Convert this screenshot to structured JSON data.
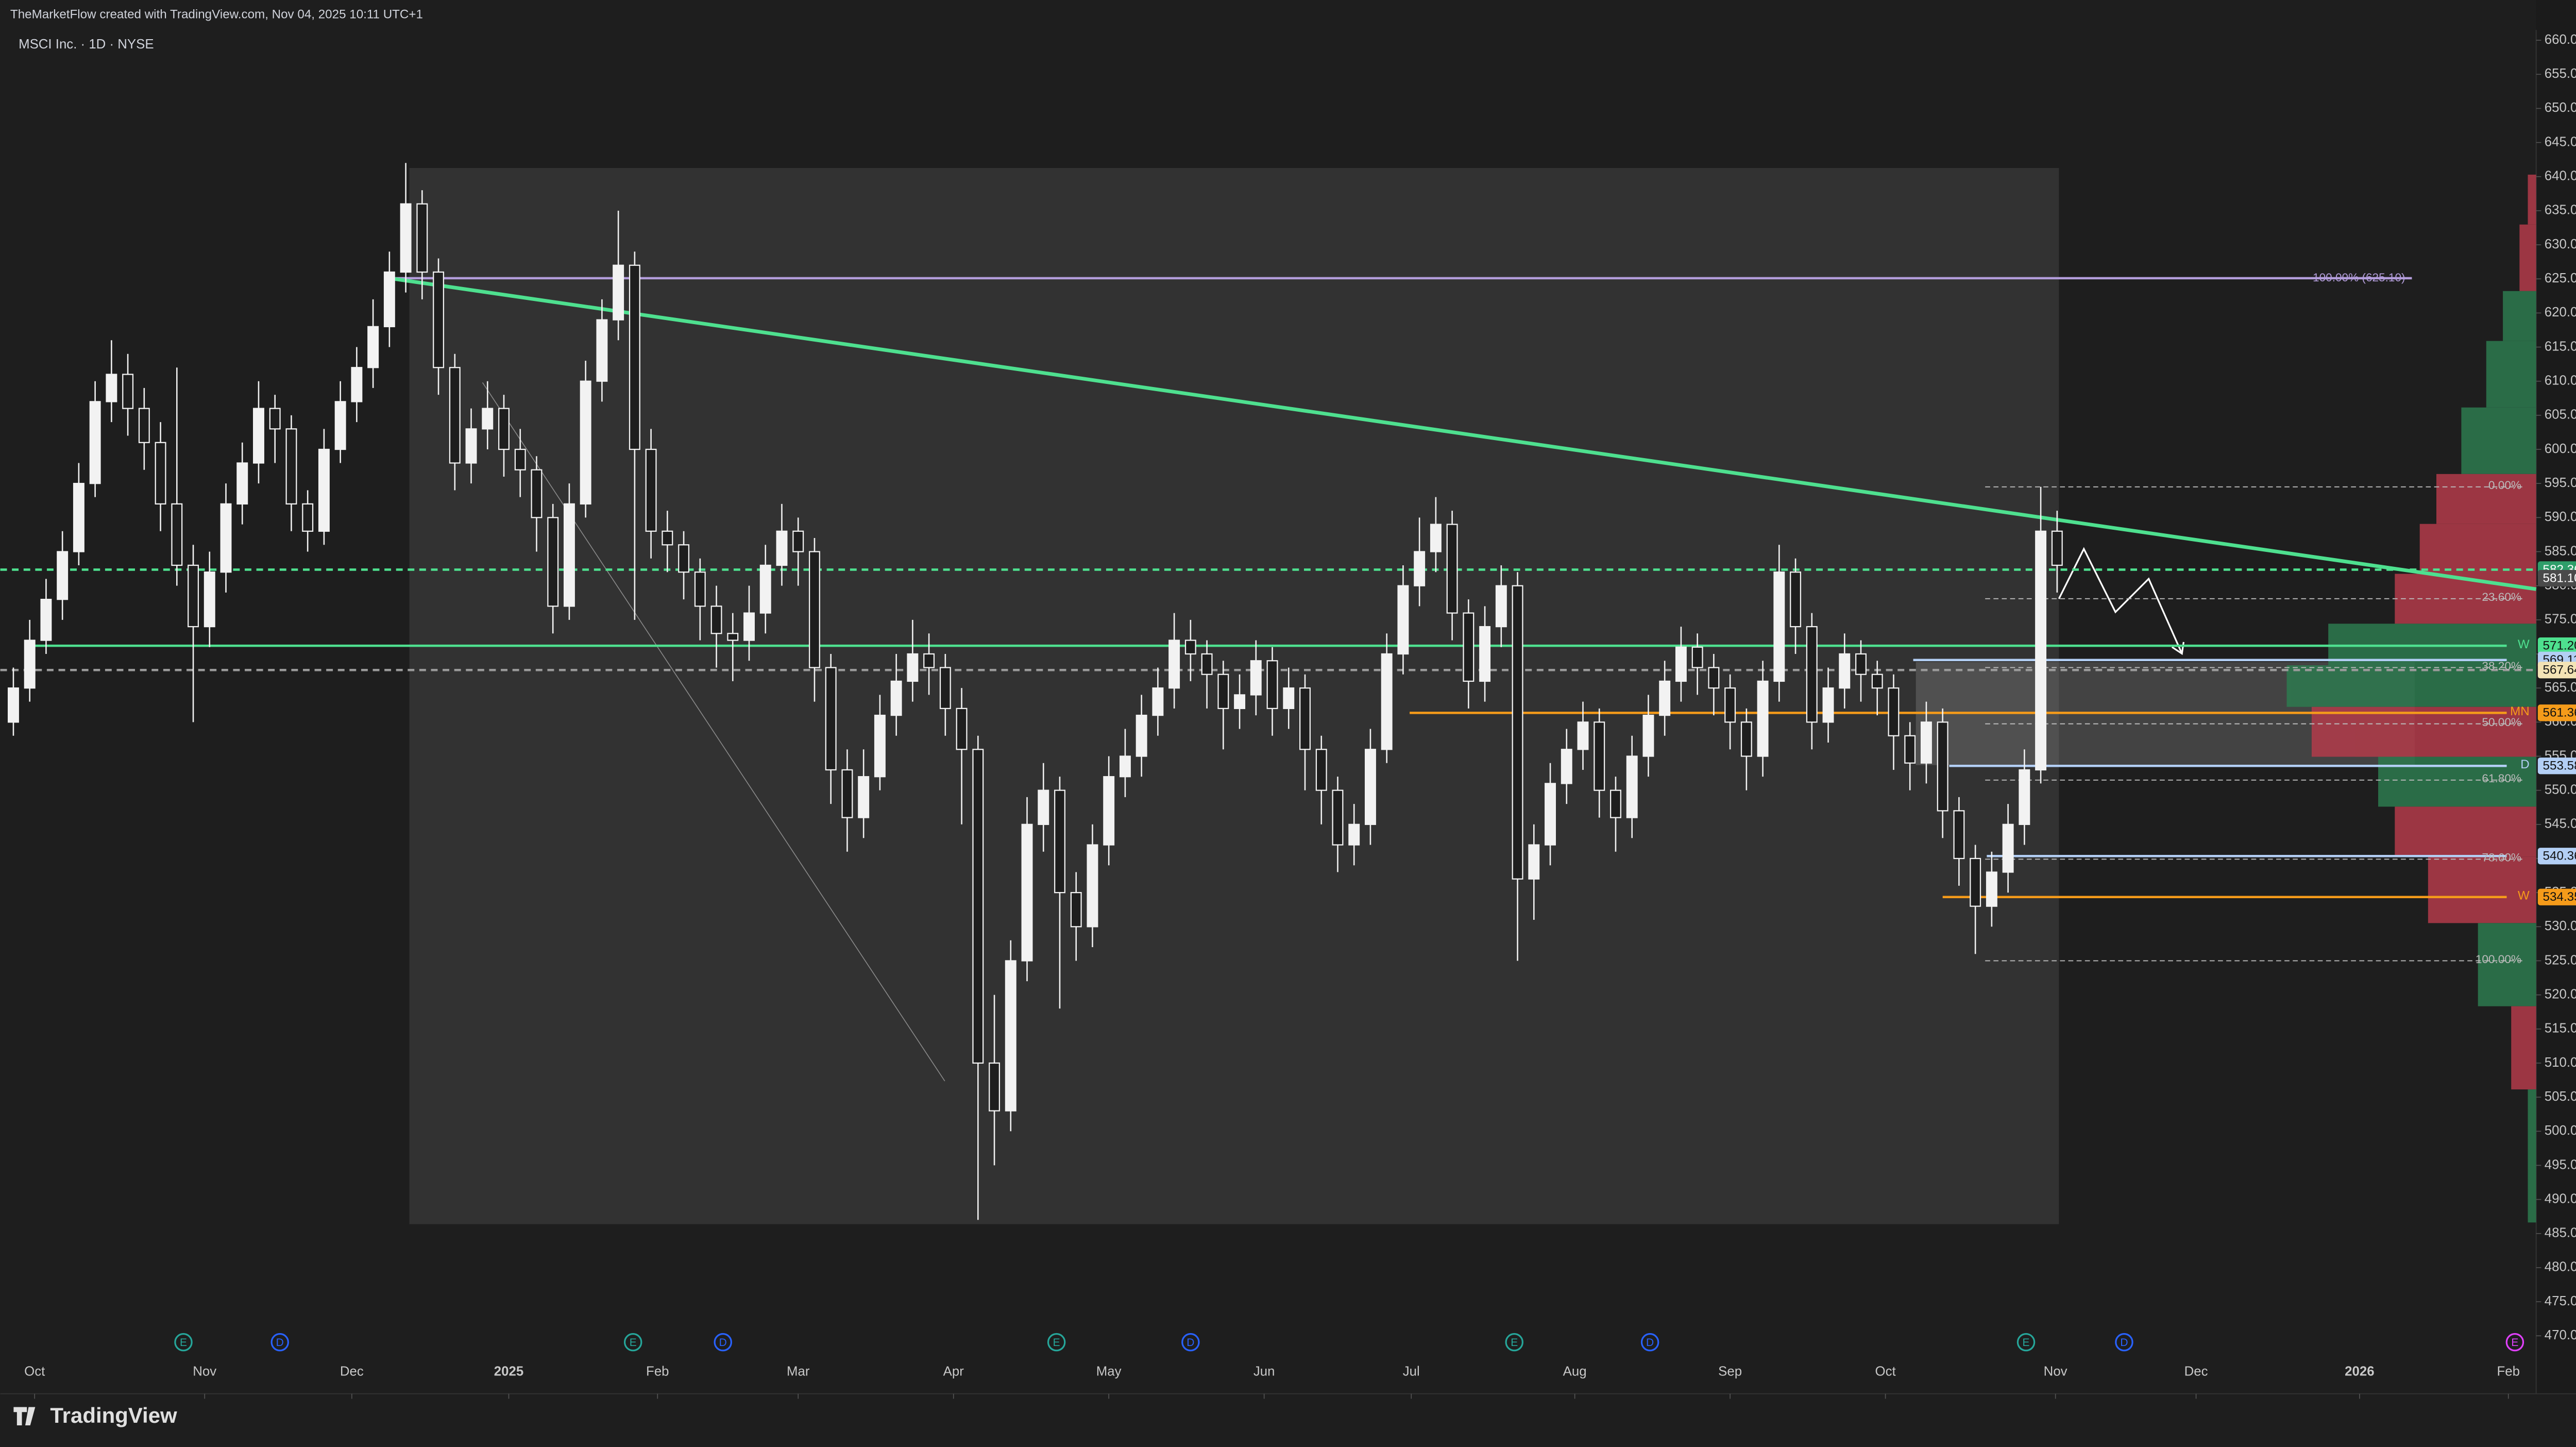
{
  "chart_data": {
    "type": "candlestick",
    "header": "TheMarketFlow created with TradingView.com, Nov 04, 2025 10:11 UTC+1",
    "title": "MSCI Inc. · 1D · NYSE",
    "brand": "TradingView",
    "color": "#f2f2f2",
    "xlim": [
      -0.8,
      154.3
    ],
    "ylim": [
      461.5,
      665.9
    ],
    "yticks": [
      {
        "value": 660,
        "label": "660.00"
      },
      {
        "value": 655,
        "label": "655.00"
      },
      {
        "value": 650,
        "label": "650.00"
      },
      {
        "value": 645,
        "label": "645.00"
      },
      {
        "value": 640,
        "label": "640.00"
      },
      {
        "value": 635,
        "label": "635.00"
      },
      {
        "value": 630,
        "label": "630.00"
      },
      {
        "value": 625,
        "label": "625.00"
      },
      {
        "value": 620,
        "label": "620.00"
      },
      {
        "value": 615,
        "label": "615.00"
      },
      {
        "value": 610,
        "label": "610.00"
      },
      {
        "value": 605,
        "label": "605.00"
      },
      {
        "value": 600,
        "label": "600.00"
      },
      {
        "value": 595,
        "label": "595.00"
      },
      {
        "value": 590,
        "label": "590.00"
      },
      {
        "value": 585,
        "label": "585.00"
      },
      {
        "value": 580,
        "label": "580.00"
      },
      {
        "value": 575,
        "label": "575.00"
      },
      {
        "value": 570,
        "label": "570.00"
      },
      {
        "value": 565,
        "label": "565.00"
      },
      {
        "value": 560,
        "label": "560.00"
      },
      {
        "value": 555,
        "label": "555.00"
      },
      {
        "value": 550,
        "label": "550.00"
      },
      {
        "value": 545,
        "label": "545.00"
      },
      {
        "value": 540,
        "label": "540.00"
      },
      {
        "value": 535,
        "label": "535.00"
      },
      {
        "value": 530,
        "label": "530.00"
      },
      {
        "value": 525,
        "label": "525.00"
      },
      {
        "value": 520,
        "label": "520.00"
      },
      {
        "value": 515,
        "label": "515.00"
      },
      {
        "value": 510,
        "label": "510.00"
      },
      {
        "value": 505,
        "label": "505.00"
      },
      {
        "value": 500,
        "label": "500.00"
      },
      {
        "value": 495,
        "label": "495.00"
      },
      {
        "value": 490,
        "label": "490.00"
      },
      {
        "value": 485,
        "label": "485.00"
      },
      {
        "value": 480,
        "label": "480.00"
      },
      {
        "value": 475,
        "label": "475.00"
      },
      {
        "value": 470,
        "label": "470.00"
      }
    ],
    "xticks": [
      {
        "value": 1.3,
        "label": "Oct"
      },
      {
        "value": 11.7,
        "label": "Nov"
      },
      {
        "value": 20.7,
        "label": "Dec"
      },
      {
        "value": 30.3,
        "label": "2025"
      },
      {
        "value": 39.4,
        "label": "Feb"
      },
      {
        "value": 48,
        "label": "Mar"
      },
      {
        "value": 57.5,
        "label": "Apr"
      },
      {
        "value": 67,
        "label": "May"
      },
      {
        "value": 76.5,
        "label": "Jun"
      },
      {
        "value": 85.5,
        "label": "Jul"
      },
      {
        "value": 95.5,
        "label": "Aug"
      },
      {
        "value": 105,
        "label": "Sep"
      },
      {
        "value": 114.5,
        "label": "Oct"
      },
      {
        "value": 124.9,
        "label": "Nov"
      },
      {
        "value": 133.5,
        "label": "Dec"
      },
      {
        "value": 143.5,
        "label": "2026"
      },
      {
        "value": 152.6,
        "label": "Feb"
      }
    ],
    "candles": [
      [
        560,
        568,
        558,
        565
      ],
      [
        565,
        575,
        563,
        572
      ],
      [
        572,
        581,
        570,
        578
      ],
      [
        578,
        588,
        575,
        585
      ],
      [
        585,
        598,
        583,
        595
      ],
      [
        595,
        610,
        593,
        607
      ],
      [
        607,
        616,
        604,
        611
      ],
      [
        611,
        614,
        602,
        606
      ],
      [
        606,
        609,
        597,
        601
      ],
      [
        601,
        604,
        588,
        592
      ],
      [
        592,
        612,
        580,
        583
      ],
      [
        583,
        586,
        560,
        574
      ],
      [
        574,
        585,
        571,
        582
      ],
      [
        582,
        595,
        579,
        592
      ],
      [
        592,
        601,
        589,
        598
      ],
      [
        598,
        610,
        595,
        606
      ],
      [
        606,
        608,
        598,
        603
      ],
      [
        603,
        605,
        588,
        592
      ],
      [
        592,
        594,
        585,
        588
      ],
      [
        588,
        603,
        586,
        600
      ],
      [
        600,
        610,
        598,
        607
      ],
      [
        607,
        615,
        604,
        612
      ],
      [
        612,
        622,
        609,
        618
      ],
      [
        618,
        629,
        615,
        626
      ],
      [
        626,
        642,
        623,
        636
      ],
      [
        636,
        638,
        622,
        626
      ],
      [
        626,
        628,
        608,
        612
      ],
      [
        612,
        614,
        594,
        598
      ],
      [
        598,
        606,
        595,
        603
      ],
      [
        603,
        610,
        600,
        606
      ],
      [
        606,
        608,
        596,
        600
      ],
      [
        600,
        603,
        593,
        597
      ],
      [
        597,
        599,
        585,
        590
      ],
      [
        590,
        592,
        573,
        577
      ],
      [
        577,
        595,
        575,
        592
      ],
      [
        592,
        613,
        590,
        610
      ],
      [
        610,
        622,
        607,
        619
      ],
      [
        619,
        635,
        616,
        627
      ],
      [
        627,
        629,
        575,
        600
      ],
      [
        600,
        603,
        584,
        588
      ],
      [
        588,
        591,
        582,
        586
      ],
      [
        586,
        588,
        578,
        582
      ],
      [
        582,
        584,
        572,
        577
      ],
      [
        577,
        580,
        568,
        573
      ],
      [
        573,
        576,
        566,
        572
      ],
      [
        572,
        580,
        569,
        576
      ],
      [
        576,
        586,
        573,
        583
      ],
      [
        583,
        592,
        580,
        588
      ],
      [
        588,
        590,
        580,
        585
      ],
      [
        585,
        587,
        563,
        568
      ],
      [
        568,
        570,
        548,
        553
      ],
      [
        553,
        556,
        541,
        546
      ],
      [
        546,
        556,
        543,
        552
      ],
      [
        552,
        564,
        550,
        561
      ],
      [
        561,
        570,
        558,
        566
      ],
      [
        566,
        575,
        563,
        570
      ],
      [
        570,
        573,
        564,
        568
      ],
      [
        568,
        570,
        558,
        562
      ],
      [
        562,
        565,
        545,
        556
      ],
      [
        556,
        558,
        487,
        510
      ],
      [
        510,
        520,
        495,
        503
      ],
      [
        503,
        528,
        500,
        525
      ],
      [
        525,
        549,
        522,
        545
      ],
      [
        545,
        554,
        541,
        550
      ],
      [
        550,
        552,
        518,
        535
      ],
      [
        535,
        538,
        525,
        530
      ],
      [
        530,
        545,
        527,
        542
      ],
      [
        542,
        555,
        539,
        552
      ],
      [
        552,
        559,
        549,
        555
      ],
      [
        555,
        564,
        552,
        561
      ],
      [
        561,
        568,
        558,
        565
      ],
      [
        565,
        576,
        562,
        572
      ],
      [
        572,
        575,
        566,
        570
      ],
      [
        570,
        572,
        562,
        567
      ],
      [
        567,
        569,
        556,
        562
      ],
      [
        562,
        567,
        559,
        564
      ],
      [
        564,
        572,
        561,
        569
      ],
      [
        569,
        571,
        558,
        562
      ],
      [
        562,
        568,
        559,
        565
      ],
      [
        565,
        567,
        550,
        556
      ],
      [
        556,
        558,
        545,
        550
      ],
      [
        550,
        552,
        538,
        542
      ],
      [
        542,
        548,
        539,
        545
      ],
      [
        545,
        559,
        542,
        556
      ],
      [
        556,
        573,
        554,
        570
      ],
      [
        570,
        583,
        567,
        580
      ],
      [
        580,
        590,
        577,
        585
      ],
      [
        585,
        593,
        582,
        589
      ],
      [
        589,
        591,
        572,
        576
      ],
      [
        576,
        578,
        562,
        566
      ],
      [
        566,
        577,
        563,
        574
      ],
      [
        574,
        583,
        571,
        580
      ],
      [
        580,
        582,
        525,
        537
      ],
      [
        537,
        545,
        531,
        542
      ],
      [
        542,
        554,
        539,
        551
      ],
      [
        551,
        559,
        548,
        556
      ],
      [
        556,
        563,
        553,
        560
      ],
      [
        560,
        562,
        546,
        550
      ],
      [
        550,
        552,
        541,
        546
      ],
      [
        546,
        558,
        543,
        555
      ],
      [
        555,
        564,
        552,
        561
      ],
      [
        561,
        569,
        558,
        566
      ],
      [
        566,
        574,
        563,
        571
      ],
      [
        571,
        573,
        564,
        568
      ],
      [
        568,
        570,
        561,
        565
      ],
      [
        565,
        567,
        556,
        560
      ],
      [
        560,
        562,
        550,
        555
      ],
      [
        555,
        569,
        552,
        566
      ],
      [
        566,
        586,
        563,
        582
      ],
      [
        582,
        584,
        570,
        574
      ],
      [
        574,
        576,
        556,
        560
      ],
      [
        560,
        568,
        557,
        565
      ],
      [
        565,
        573,
        562,
        570
      ],
      [
        570,
        572,
        563,
        567
      ],
      [
        567,
        569,
        561,
        565
      ],
      [
        565,
        567,
        553,
        558
      ],
      [
        558,
        560,
        550,
        554
      ],
      [
        554,
        563,
        551,
        560
      ],
      [
        560,
        562,
        543,
        547
      ],
      [
        547,
        549,
        536,
        540
      ],
      [
        540,
        542,
        526,
        533
      ],
      [
        533,
        541,
        530,
        538
      ],
      [
        538,
        548,
        535,
        545
      ],
      [
        545,
        556,
        542,
        553
      ],
      [
        553,
        594.5,
        551,
        588
      ],
      [
        588,
        591,
        579,
        583
      ]
    ],
    "trendline": {
      "x": [
        23.3,
        154.3
      ],
      "y": [
        625,
        579.5
      ],
      "color": "#4ee08f"
    },
    "levels": [
      {
        "value": 625.1,
        "color": "#b39ddb",
        "style": "solid",
        "x_start": 23.3,
        "x_end": 146.7,
        "text": "100.00% (625.10)"
      },
      {
        "value": 582.36,
        "color": "#4ee08f",
        "style": "dashed",
        "x_start": -0.8,
        "x_end": 154.3,
        "label": "582.36",
        "label_bg": "#2e9e6a",
        "label_fg": "#ffffff"
      },
      {
        "value": 581.1,
        "color": "#888888",
        "style": "none",
        "label": "581.10",
        "label_bg": "#4a4a4a",
        "label_fg": "#ffffff"
      },
      {
        "value": 571.2,
        "color": "#4ee08f",
        "style": "solid",
        "x_start": 1.2,
        "x_end": 152.5,
        "label": "571.20",
        "label_bg": "#4ee08f",
        "label_fg": "#111111"
      },
      {
        "value": 569.11,
        "color": "#b3cff5",
        "style": "solid",
        "x_start": 116.2,
        "x_end": 152.5,
        "label": "569.11",
        "label_bg": "#b3cff5",
        "label_fg": "#111111"
      },
      {
        "value": 567.64,
        "color": "#9a9a9a",
        "style": "dashed",
        "x_start": -0.8,
        "x_end": 154.3,
        "label": "567.64",
        "label_bg": "#f3e3b5",
        "label_fg": "#111111"
      },
      {
        "value": 561.36,
        "color": "#f59b1a",
        "style": "solid",
        "x_start": 85.4,
        "x_end": 152.5,
        "label": "561.36",
        "label_bg": "#f59b1a",
        "label_fg": "#111111"
      },
      {
        "value": 553.58,
        "color": "#b3cff5",
        "style": "solid",
        "x_start": 118.4,
        "x_end": 152.5,
        "label": "553.58",
        "label_bg": "#b3cff5",
        "label_fg": "#111111"
      },
      {
        "value": 540.36,
        "color": "#b3cff5",
        "style": "solid",
        "x_start": 120.7,
        "x_end": 152.5,
        "label": "540.36",
        "label_bg": "#b3cff5",
        "label_fg": "#111111"
      },
      {
        "value": 534.35,
        "color": "#f59b1a",
        "style": "solid",
        "x_start": 118,
        "x_end": 152.5,
        "label": "534.35",
        "label_bg": "#f59b1a",
        "label_fg": "#111111"
      }
    ],
    "level_tags": [
      {
        "label": "W",
        "value": 571.2,
        "color": "#4ee08f"
      },
      {
        "label": "MN",
        "value": 561.36,
        "color": "#f59b1a"
      },
      {
        "label": "D",
        "value": 553.58,
        "color": "#b3cff5"
      },
      {
        "label": "W",
        "value": 534.35,
        "color": "#f59b1a"
      }
    ],
    "fib": {
      "color": "#bbbbbb",
      "x_start": 120.6,
      "x_end": 153.6,
      "levels": [
        {
          "value": 594.5,
          "label": "0.00%"
        },
        {
          "value": 578.1,
          "label": "23.60%"
        },
        {
          "value": 568,
          "label": "38.20%"
        },
        {
          "value": 559.75,
          "label": "50.00%"
        },
        {
          "value": 551.5,
          "label": "61.80%"
        },
        {
          "value": 539.9,
          "label": "78.60%"
        },
        {
          "value": 525,
          "label": "100.00%"
        }
      ]
    },
    "events": [
      {
        "label": "E",
        "x": 10.4,
        "color": "#26a69a"
      },
      {
        "label": "D",
        "x": 16.3,
        "color": "#2962ff"
      },
      {
        "label": "E",
        "x": 37.9,
        "color": "#26a69a"
      },
      {
        "label": "D",
        "x": 43.4,
        "color": "#2962ff"
      },
      {
        "label": "E",
        "x": 63.8,
        "color": "#26a69a"
      },
      {
        "label": "D",
        "x": 72,
        "color": "#2962ff"
      },
      {
        "label": "E",
        "x": 91.8,
        "color": "#26a69a"
      },
      {
        "label": "D",
        "x": 100.1,
        "color": "#2962ff"
      },
      {
        "label": "E",
        "x": 123.1,
        "color": "#26a69a"
      },
      {
        "label": "D",
        "x": 129.1,
        "color": "#2962ff"
      },
      {
        "label": "E",
        "x": 153,
        "color": "#e040fb"
      }
    ]
  }
}
